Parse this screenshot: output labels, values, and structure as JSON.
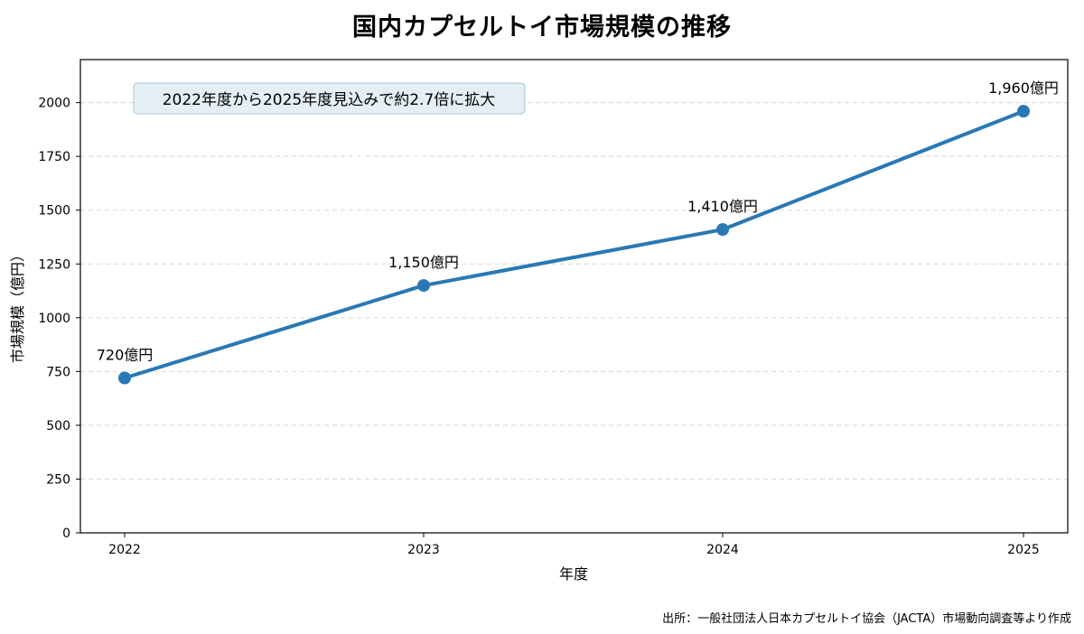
{
  "title": "国内カプセルトイ市場規模の推移",
  "source": "出所：一般社団法人日本カプセルトイ協会（JACTA）市場動向調査等より作成",
  "colors": {
    "line": "#2a78b4",
    "annotation_bg": "#e4eef5",
    "annotation_border": "#a9c4d8",
    "grid": "#d7d7d7"
  },
  "chart_data": {
    "type": "line",
    "title": "国内カプセルトイ市場規模の推移",
    "xlabel": "年度",
    "ylabel": "市場規模（億円）",
    "categories": [
      "2022",
      "2023",
      "2024",
      "2025"
    ],
    "series": [
      {
        "values": [
          720,
          1150,
          1410,
          1960
        ]
      }
    ],
    "data_labels": [
      "720億円",
      "1,150億円",
      "1,410億円",
      "1,960億円"
    ],
    "yticks": [
      0,
      250,
      500,
      750,
      1000,
      1250,
      1500,
      1750,
      2000
    ],
    "ylim": [
      0,
      2200
    ],
    "grid": "horizontal dashed",
    "annotation": "2022年度から2025年度見込みで約2.7倍に拡大"
  }
}
